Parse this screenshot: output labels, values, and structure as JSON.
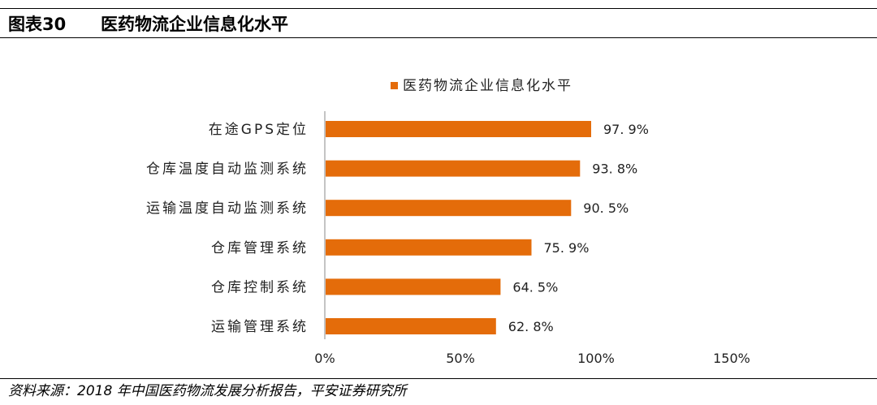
{
  "figure": {
    "label": "图表30",
    "title": "医药物流企业信息化水平",
    "source": "资料来源：2018 年中国医药物流发展分析报告，平安证券研究所"
  },
  "chart_data": {
    "type": "bar",
    "orientation": "horizontal",
    "categories": [
      "在途GPS定位",
      "仓库温度自动监测系统",
      "运输温度自动监测系统",
      "仓库管理系统",
      "仓库控制系统",
      "运输管理系统"
    ],
    "series": [
      {
        "name": "医药物流企业信息化水平",
        "values": [
          97.9,
          93.8,
          90.5,
          75.9,
          64.5,
          62.8
        ],
        "value_labels": [
          "97. 9%",
          "93. 8%",
          "90. 5%",
          "75. 9%",
          "64. 5%",
          "62. 8%"
        ],
        "color": "#E46C0A"
      }
    ],
    "xlim": [
      0,
      150
    ],
    "xticks": [
      0,
      50,
      100,
      150
    ],
    "xtick_labels": [
      "0%",
      "50%",
      "100%",
      "150%"
    ],
    "xlabel": "",
    "ylabel": "",
    "legend": "top-center",
    "grid": false
  }
}
